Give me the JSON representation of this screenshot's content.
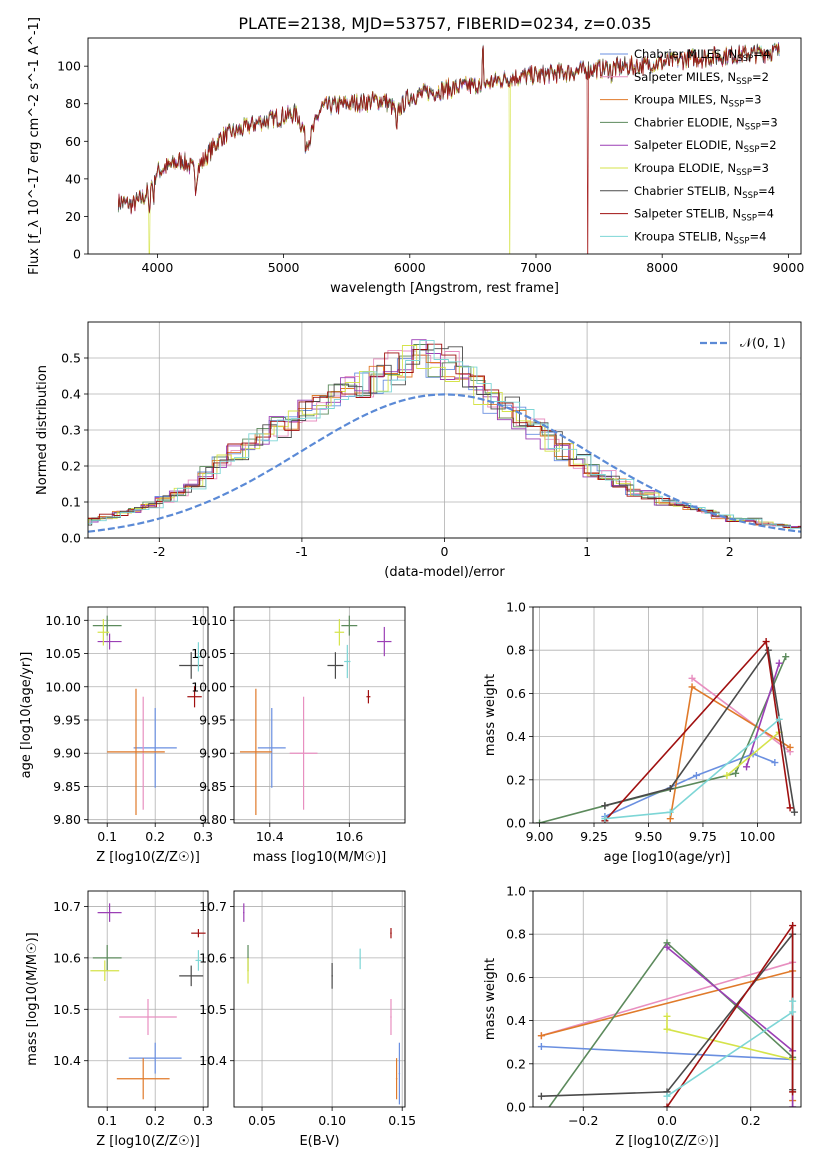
{
  "title": "PLATE=2138, MJD=53757, FIBERID=0234, z=0.035",
  "colors": [
    "#6a8fe0",
    "#e88fc0",
    "#e07a2a",
    "#5c8a5c",
    "#9b3fb5",
    "#d5e34a",
    "#4a4a4a",
    "#a01010",
    "#7dd6d6"
  ],
  "legend_names": [
    "Chabrier MILES",
    "Salpeter MILES",
    "Kroupa MILES",
    "Chabrier ELODIE",
    "Salpeter ELODIE",
    "Kroupa ELODIE",
    "Chabrier STELIB",
    "Salpeter STELIB",
    "Kroupa STELIB"
  ],
  "legend_nssp": [
    4,
    2,
    3,
    3,
    2,
    3,
    4,
    4,
    4
  ],
  "chart_data": [
    {
      "id": "spectrum",
      "type": "line",
      "xlabel": "wavelength [Angstrom, rest frame]",
      "ylabel": "Flux [f_λ 10^-17 erg cm^-2 s^-1 A^-1]",
      "xlim": [
        3450,
        9100
      ],
      "ylim": [
        0,
        115
      ],
      "xticks": [
        4000,
        5000,
        6000,
        7000,
        8000,
        9000
      ],
      "yticks": [
        0,
        20,
        40,
        60,
        80,
        100
      ],
      "x_range_data": [
        3690,
        8930
      ],
      "continuum_points": [
        [
          3690,
          28
        ],
        [
          3800,
          26
        ],
        [
          3900,
          31
        ],
        [
          4000,
          44
        ],
        [
          4200,
          50
        ],
        [
          4300,
          44
        ],
        [
          4500,
          62
        ],
        [
          4800,
          70
        ],
        [
          5100,
          75
        ],
        [
          5200,
          60
        ],
        [
          5300,
          78
        ],
        [
          5500,
          80
        ],
        [
          5800,
          82
        ],
        [
          5900,
          76
        ],
        [
          6000,
          84
        ],
        [
          6300,
          88
        ],
        [
          6560,
          90
        ],
        [
          6800,
          94
        ],
        [
          7000,
          95
        ],
        [
          7400,
          98
        ],
        [
          7800,
          100
        ],
        [
          8200,
          104
        ],
        [
          8600,
          106
        ],
        [
          8930,
          108
        ]
      ],
      "absorption_lines": [
        [
          3935,
          18
        ],
        [
          3970,
          12
        ],
        [
          4305,
          10
        ],
        [
          5175,
          8
        ],
        [
          5895,
          14
        ],
        [
          6563,
          6
        ],
        [
          7600,
          5
        ]
      ],
      "dropouts": [
        {
          "x": 3935,
          "series": 5,
          "to": 0
        },
        {
          "x": 6790,
          "series": 5,
          "to": 0
        },
        {
          "x": 7410,
          "series": 7,
          "to": 0
        }
      ],
      "spike": {
        "x": 6580,
        "y": 112
      }
    },
    {
      "id": "residuals",
      "type": "histogram",
      "xlabel": "(data-model)/error",
      "ylabel": "Normed distribution",
      "xlim": [
        -2.5,
        2.5
      ],
      "ylim": [
        0,
        0.6
      ],
      "xticks": [
        -2,
        -1,
        0,
        1,
        2
      ],
      "yticks": [
        0.0,
        0.1,
        0.2,
        0.3,
        0.4,
        0.5
      ],
      "bin_width": 0.1,
      "base_bin_values": [
        0.03,
        0.03,
        0.035,
        0.04,
        0.04,
        0.05,
        0.06,
        0.07,
        0.08,
        0.09,
        0.11,
        0.13,
        0.15,
        0.18,
        0.21,
        0.24,
        0.27,
        0.29,
        0.31,
        0.33,
        0.35,
        0.37,
        0.39,
        0.41,
        0.43,
        0.45,
        0.47,
        0.49,
        0.5,
        0.5,
        0.48,
        0.44,
        0.41,
        0.38,
        0.36,
        0.33,
        0.3,
        0.27,
        0.24,
        0.21,
        0.19,
        0.17,
        0.15,
        0.13,
        0.12,
        0.1,
        0.09,
        0.08,
        0.07,
        0.06,
        0.05,
        0.05,
        0.04,
        0.035,
        0.03,
        0.03,
        0.025,
        0.02,
        0.02,
        0.02
      ],
      "bin_start": -3.0,
      "reference": {
        "name": "𝒩(0, 1)",
        "mean": 0,
        "sigma": 1
      }
    },
    {
      "id": "age_vs_Z",
      "type": "scatter",
      "xlabel": "Z [log10(Z/Z☉)]",
      "ylabel": "age [log10(age/yr)]",
      "xlim": [
        0.06,
        0.31
      ],
      "ylim": [
        9.795,
        10.12
      ],
      "xticks": [
        0.1,
        0.2,
        0.3
      ],
      "yticks": [
        9.8,
        9.85,
        9.9,
        9.95,
        10.0,
        10.05,
        10.1
      ],
      "points": [
        {
          "s": 0,
          "x": 0.2,
          "y": 9.908,
          "xerr": 0.045,
          "yerr": 0.06
        },
        {
          "s": 1,
          "x": 0.175,
          "y": 9.9,
          "xerr": 0.0,
          "yerr": 0.085
        },
        {
          "s": 2,
          "x": 0.16,
          "y": 9.902,
          "xerr": 0.06,
          "yerr": 0.095
        },
        {
          "s": 3,
          "x": 0.1,
          "y": 10.092,
          "xerr": 0.03,
          "yerr": 0.015
        },
        {
          "s": 4,
          "x": 0.105,
          "y": 10.068,
          "xerr": 0.025,
          "yerr": 0.012
        },
        {
          "s": 5,
          "x": 0.092,
          "y": 10.082,
          "xerr": 0.012,
          "yerr": 0.02
        },
        {
          "s": 6,
          "x": 0.275,
          "y": 10.032,
          "xerr": 0.025,
          "yerr": 0.02
        },
        {
          "s": 7,
          "x": 0.282,
          "y": 9.985,
          "xerr": 0.015,
          "yerr": 0.016
        },
        {
          "s": 8,
          "x": 0.29,
          "y": 10.045,
          "xerr": 0.005,
          "yerr": 0.022
        }
      ]
    },
    {
      "id": "age_vs_mass",
      "type": "scatter",
      "xlabel": "mass [log10(M/M☉)]",
      "ylabel": "",
      "xlim": [
        10.31,
        10.74
      ],
      "ylim": [
        9.795,
        10.12
      ],
      "xticks": [
        10.4,
        10.6
      ],
      "yticks": [
        9.8,
        9.85,
        9.9,
        9.95,
        10.0,
        10.05,
        10.1
      ],
      "points": [
        {
          "s": 0,
          "x": 10.405,
          "y": 9.908,
          "xerr": 0.035,
          "yerr": 0.06
        },
        {
          "s": 1,
          "x": 10.485,
          "y": 9.9,
          "xerr": 0.035,
          "yerr": 0.085
        },
        {
          "s": 2,
          "x": 10.365,
          "y": 9.902,
          "xerr": 0.04,
          "yerr": 0.095
        },
        {
          "s": 3,
          "x": 10.6,
          "y": 10.092,
          "xerr": 0.02,
          "yerr": 0.015
        },
        {
          "s": 4,
          "x": 10.688,
          "y": 10.068,
          "xerr": 0.018,
          "yerr": 0.022
        },
        {
          "s": 5,
          "x": 10.575,
          "y": 10.082,
          "xerr": 0.012,
          "yerr": 0.02
        },
        {
          "s": 6,
          "x": 10.565,
          "y": 10.032,
          "xerr": 0.02,
          "yerr": 0.02
        },
        {
          "s": 7,
          "x": 10.648,
          "y": 9.985,
          "xerr": 0.005,
          "yerr": 0.01
        },
        {
          "s": 8,
          "x": 10.595,
          "y": 10.038,
          "xerr": 0.008,
          "yerr": 0.025
        }
      ]
    },
    {
      "id": "massweight_vs_age",
      "type": "line",
      "xlabel": "age [log10(age/yr)]",
      "ylabel": "mass weight",
      "xlim": [
        8.97,
        10.2
      ],
      "ylim": [
        0,
        1.0
      ],
      "xticks": [
        9.0,
        9.25,
        9.5,
        9.75,
        10.0
      ],
      "xtick_labels": [
        "9.00",
        "9.25",
        "9.50",
        "9.75",
        "10.00"
      ],
      "yticks": [
        0.0,
        0.2,
        0.4,
        0.6,
        0.8,
        1.0
      ],
      "series": [
        {
          "s": 0,
          "x": [
            9.3,
            9.72,
            9.98,
            10.08
          ],
          "y": [
            0.03,
            0.22,
            0.32,
            0.28
          ]
        },
        {
          "s": 1,
          "x": [
            9.7,
            10.15
          ],
          "y": [
            0.67,
            0.33
          ]
        },
        {
          "s": 2,
          "x": [
            9.6,
            9.7,
            10.15
          ],
          "y": [
            0.02,
            0.63,
            0.35
          ]
        },
        {
          "s": 3,
          "x": [
            9.0,
            9.3,
            9.9,
            10.13
          ],
          "y": [
            0.0,
            0.08,
            0.23,
            0.77
          ]
        },
        {
          "s": 4,
          "x": [
            9.95,
            10.1
          ],
          "y": [
            0.26,
            0.74
          ]
        },
        {
          "s": 5,
          "x": [
            9.86,
            10.1
          ],
          "y": [
            0.22,
            0.42
          ]
        },
        {
          "s": 6,
          "x": [
            9.3,
            9.6,
            10.05,
            10.17
          ],
          "y": [
            0.08,
            0.16,
            0.8,
            0.05
          ]
        },
        {
          "s": 7,
          "x": [
            9.3,
            10.04,
            10.15
          ],
          "y": [
            0.01,
            0.84,
            0.07
          ]
        },
        {
          "s": 8,
          "x": [
            9.3,
            9.6,
            10.1
          ],
          "y": [
            0.02,
            0.05,
            0.48
          ]
        }
      ]
    },
    {
      "id": "mass_vs_Z",
      "type": "scatter",
      "xlabel": "Z [log10(Z/Z☉)]",
      "ylabel": "mass [log10(M/M☉)]",
      "xlim": [
        0.06,
        0.31
      ],
      "ylim": [
        10.31,
        10.73
      ],
      "xticks": [
        0.1,
        0.2,
        0.3
      ],
      "yticks": [
        10.4,
        10.5,
        10.6,
        10.7
      ],
      "points": [
        {
          "s": 0,
          "x": 0.2,
          "y": 10.405,
          "xerr": 0.055,
          "yerr": 0.03
        },
        {
          "s": 1,
          "x": 0.185,
          "y": 10.485,
          "xerr": 0.06,
          "yerr": 0.035
        },
        {
          "s": 2,
          "x": 0.175,
          "y": 10.365,
          "xerr": 0.055,
          "yerr": 0.04
        },
        {
          "s": 3,
          "x": 0.1,
          "y": 10.6,
          "xerr": 0.03,
          "yerr": 0.025
        },
        {
          "s": 4,
          "x": 0.105,
          "y": 10.688,
          "xerr": 0.025,
          "yerr": 0.018
        },
        {
          "s": 5,
          "x": 0.095,
          "y": 10.575,
          "xerr": 0.03,
          "yerr": 0.02
        },
        {
          "s": 6,
          "x": 0.275,
          "y": 10.565,
          "xerr": 0.025,
          "yerr": 0.02
        },
        {
          "s": 7,
          "x": 0.29,
          "y": 10.648,
          "xerr": 0.015,
          "yerr": 0.008
        },
        {
          "s": 8,
          "x": 0.29,
          "y": 10.595,
          "xerr": 0.006,
          "yerr": 0.02
        }
      ]
    },
    {
      "id": "mass_vs_ebv",
      "type": "scatter",
      "xlabel": "E(B-V)",
      "ylabel": "",
      "xlim": [
        0.03,
        0.152
      ],
      "ylim": [
        10.31,
        10.73
      ],
      "xticks": [
        0.05,
        0.1,
        0.15
      ],
      "xtick_labels": [
        "0.05",
        "0.10",
        "0.15"
      ],
      "yticks": [
        10.4,
        10.5,
        10.6,
        10.7
      ],
      "points": [
        {
          "s": 0,
          "x": 0.148,
          "y": 10.375,
          "xerr": 0.0005,
          "yerr": 0.06
        },
        {
          "s": 1,
          "x": 0.142,
          "y": 10.485,
          "xerr": 0.0005,
          "yerr": 0.035
        },
        {
          "s": 2,
          "x": 0.146,
          "y": 10.365,
          "xerr": 0.0005,
          "yerr": 0.04
        },
        {
          "s": 3,
          "x": 0.04,
          "y": 10.6,
          "xerr": 0.0005,
          "yerr": 0.025
        },
        {
          "s": 4,
          "x": 0.037,
          "y": 10.688,
          "xerr": 0.0005,
          "yerr": 0.018
        },
        {
          "s": 5,
          "x": 0.04,
          "y": 10.575,
          "xerr": 0.0005,
          "yerr": 0.025
        },
        {
          "s": 6,
          "x": 0.1,
          "y": 10.565,
          "xerr": 0.0005,
          "yerr": 0.025
        },
        {
          "s": 7,
          "x": 0.142,
          "y": 10.648,
          "xerr": 0.0005,
          "yerr": 0.01
        },
        {
          "s": 8,
          "x": 0.12,
          "y": 10.598,
          "xerr": 0.0005,
          "yerr": 0.02
        }
      ]
    },
    {
      "id": "massweight_vs_Z",
      "type": "line",
      "xlabel": "Z [log10(Z/Z☉)]",
      "ylabel": "mass weight",
      "xlim": [
        -0.32,
        0.32
      ],
      "ylim": [
        0,
        1.0
      ],
      "xticks": [
        -0.2,
        0.0,
        0.2
      ],
      "xtick_labels": [
        "−0.2",
        "0.0",
        "0.2"
      ],
      "yticks": [
        0.0,
        0.2,
        0.4,
        0.6,
        0.8,
        1.0
      ],
      "series": [
        {
          "s": 0,
          "x": [
            -0.3,
            0.3
          ],
          "y": [
            0.28,
            0.22
          ]
        },
        {
          "s": 1,
          "x": [
            -0.3,
            0.3
          ],
          "y": [
            0.33,
            0.67
          ]
        },
        {
          "s": 2,
          "x": [
            -0.3,
            0.3,
            0.3
          ],
          "y": [
            0.33,
            0.63,
            0.03
          ]
        },
        {
          "s": 3,
          "x": [
            -0.3,
            0.0,
            0.3
          ],
          "y": [
            -0.05,
            0.76,
            0.23
          ]
        },
        {
          "s": 4,
          "x": [
            0.0,
            0.3,
            0.3
          ],
          "y": [
            0.74,
            0.26,
            0.0
          ]
        },
        {
          "s": 5,
          "x": [
            0.0,
            0.0,
            0.3
          ],
          "y": [
            0.42,
            0.36,
            0.22
          ]
        },
        {
          "s": 6,
          "x": [
            -0.3,
            0.0,
            0.3,
            0.3
          ],
          "y": [
            0.05,
            0.07,
            0.8,
            0.08
          ]
        },
        {
          "s": 7,
          "x": [
            0.0,
            0.3,
            0.3
          ],
          "y": [
            0.0,
            0.84,
            0.07
          ]
        },
        {
          "s": 8,
          "x": [
            0.0,
            0.3,
            0.3
          ],
          "y": [
            0.05,
            0.44,
            0.49
          ]
        }
      ]
    }
  ]
}
